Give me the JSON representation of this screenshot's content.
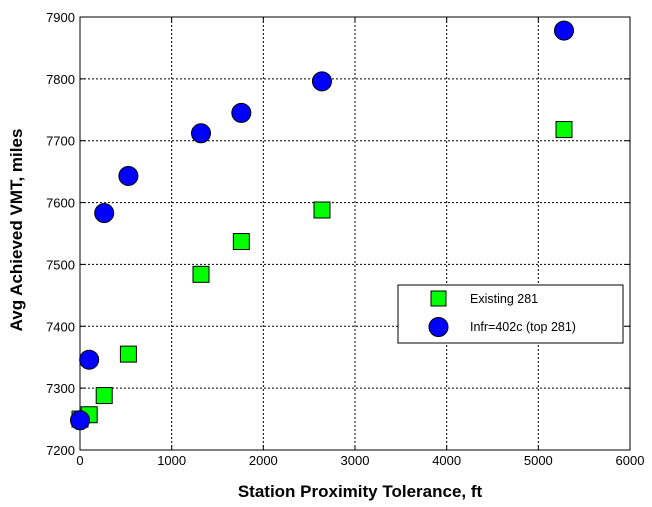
{
  "chart_data": {
    "type": "scatter",
    "title": "",
    "xlabel": "Station Proximity Tolerance, ft",
    "ylabel": "Avg Achieved VMT, miles",
    "xlim": [
      0,
      6000
    ],
    "ylim": [
      7200,
      7900
    ],
    "xticks": [
      "0",
      "1000",
      "2000",
      "3000",
      "4000",
      "5000",
      "6000"
    ],
    "yticks": [
      "7200",
      "7300",
      "7400",
      "7500",
      "7600",
      "7700",
      "7800",
      "7900"
    ],
    "grid": true,
    "legend_position": "right",
    "series": [
      {
        "name": "Existing 281",
        "marker": "square",
        "color": "#00ff00",
        "x": [
          0,
          100,
          264,
          528,
          1320,
          1760,
          2640,
          5280
        ],
        "y": [
          7250,
          7257,
          7288,
          7355,
          7484,
          7537,
          7588,
          7718
        ]
      },
      {
        "name": "Infr=402c (top 281)",
        "marker": "circle",
        "color": "#0000ff",
        "x": [
          0,
          100,
          264,
          528,
          1320,
          1760,
          2640,
          5280
        ],
        "y": [
          7248,
          7346,
          7583,
          7643,
          7712,
          7745,
          7796,
          7878
        ]
      }
    ]
  }
}
